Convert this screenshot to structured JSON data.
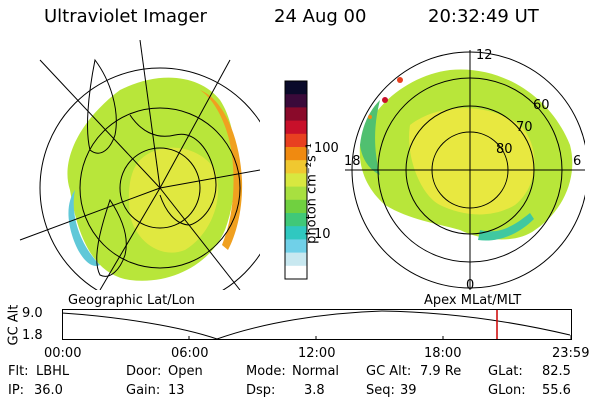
{
  "header": {
    "title": "Ultraviolet Imager",
    "date": "24 Aug 00",
    "time": "20:32:49 UT"
  },
  "colorbar": {
    "unit_label": "photon cm⁻²s⁻¹",
    "ticks": [
      "100",
      "10"
    ],
    "colors": [
      "#0a0a2a",
      "#3a0a3a",
      "#8a0a2a",
      "#c8102a",
      "#e84020",
      "#f08a10",
      "#f0c830",
      "#d8e840",
      "#a8e040",
      "#70d040",
      "#40c878",
      "#30c8c0",
      "#70d0e8",
      "#c8e8f0",
      "#ffffff"
    ]
  },
  "polar_labels": {
    "noon": "12",
    "midnight": "0",
    "dusk": "18",
    "dawn": "6",
    "lat60": "60",
    "lat70": "70",
    "lat80": "80"
  },
  "strip": {
    "y_label": "GC Alt",
    "y_high": "9.0",
    "y_low": "1.8",
    "left_caption": "Geographic Lat/Lon",
    "right_caption": "Apex MLat/MLT",
    "time_ticks": [
      "00:00",
      "06:00",
      "12:00",
      "18:00",
      "23:59"
    ],
    "marker_color": "#cc0000"
  },
  "params": {
    "filter_label": "Flt:",
    "filter_value": "LBHL",
    "ip_label": "IP:",
    "ip_value": "36.0",
    "door_label": "Door:",
    "door_value": "Open",
    "gain_label": "Gain:",
    "gain_value": "13",
    "mode_label": "Mode:",
    "mode_value": "Normal",
    "dsp_label": "Dsp:",
    "dsp_value": "3.8",
    "gcalt_label": "GC Alt:",
    "gcalt_value": "7.9 Re",
    "seq_label": "Seq:",
    "seq_value": "39",
    "glat_label": "GLat:",
    "glat_value": "82.5",
    "glon_label": "GLon:",
    "glon_value": "55.6"
  }
}
